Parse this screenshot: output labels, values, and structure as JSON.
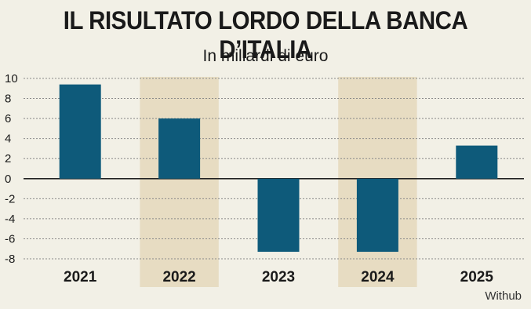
{
  "chart_data": {
    "type": "bar",
    "title": "IL RISULTATO LORDO DELLA BANCA D’ITALIA",
    "subtitle": "In miliardi di euro",
    "source": "Withub",
    "categories": [
      "2021",
      "2022",
      "2023",
      "2024",
      "2025"
    ],
    "values": [
      9.4,
      6.0,
      -7.3,
      -7.3,
      3.3
    ],
    "ylim": [
      -8,
      10
    ],
    "yticks": [
      10,
      8,
      6,
      4,
      2,
      0,
      -2,
      -4,
      -6,
      -8
    ],
    "grid": true,
    "shaded_categories": [
      "2022",
      "2024"
    ],
    "colors": {
      "bar": "#0e5a7a",
      "shade": "#e7dcc2",
      "background": "#f2f0e6"
    }
  }
}
